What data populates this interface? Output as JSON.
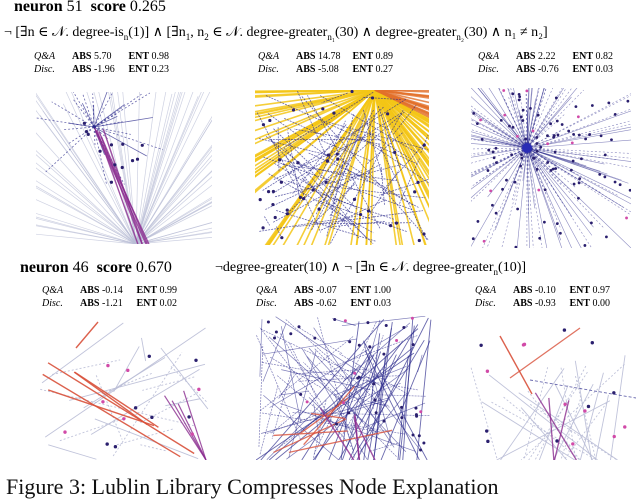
{
  "section1": {
    "heading_word": "neuron",
    "neuron_id": "51",
    "score_word": "score",
    "score": "0.265",
    "formula_left": "¬ [∃n ∈ 𝒩. degree-is",
    "formula_left_sub": "n",
    "formula_left_tail": "(1)] ∧ [∃n",
    "formula_mid1_sub": "1",
    "formula_mid": ", n",
    "formula_mid2_sub": "2",
    "formula_mid_tail": " ∈ 𝒩. degree-greater",
    "formula_g1_sub": "n₁",
    "formula_g1_tail": "(30) ∧ degree-greater",
    "formula_g2_sub": "n₂",
    "formula_g2_tail": "(30) ∧ n₁ ≠ n₂]",
    "panels": [
      {
        "qa_label": "Q&A",
        "qa_abs": "5.70",
        "qa_ent": "0.98",
        "disc_label": "Disc.",
        "disc_abs": "-1.96",
        "disc_ent": "0.23"
      },
      {
        "qa_label": "Q&A",
        "qa_abs": "14.78",
        "qa_ent": "0.89",
        "disc_label": "Disc.",
        "disc_abs": "-5.08",
        "disc_ent": "0.27"
      },
      {
        "qa_label": "Q&A",
        "qa_abs": "2.22",
        "qa_ent": "0.82",
        "disc_label": "Disc.",
        "disc_abs": "-0.76",
        "disc_ent": "0.03"
      }
    ]
  },
  "section2": {
    "heading_word": "neuron",
    "neuron_id": "46",
    "score_word": "score",
    "score": "0.670",
    "formula_a": "¬degree-greater(10) ∧ ¬ [∃n ∈ 𝒩. degree-greater",
    "formula_a_sub": "n",
    "formula_a_tail": "(10)]",
    "panels": [
      {
        "qa_label": "Q&A",
        "qa_abs": "-0.14",
        "qa_ent": "0.99",
        "disc_label": "Disc.",
        "disc_abs": "-1.21",
        "disc_ent": "0.02"
      },
      {
        "qa_label": "Q&A",
        "qa_abs": "-0.07",
        "qa_ent": "1.00",
        "disc_label": "Disc.",
        "disc_abs": "-0.62",
        "disc_ent": "0.03"
      },
      {
        "qa_label": "Q&A",
        "qa_abs": "-0.10",
        "qa_ent": "0.97",
        "disc_label": "Disc.",
        "disc_abs": "-0.93",
        "disc_ent": "0.00"
      }
    ]
  },
  "stat_keys": {
    "abs": "ABS",
    "ent": "ENT"
  },
  "caption": "Figure 3: Lublin Library Compresses Node Explanation",
  "colors": {
    "text": "#000000",
    "edge_light": "#b9bdd6",
    "edge_dark": "#2b2a8c",
    "edge_purple": "#8a2a8e",
    "edge_red": "#d8503a",
    "edge_yellow": "#f3c516",
    "node_dark": "#2a1f6e",
    "node_pink": "#d14aa8"
  }
}
